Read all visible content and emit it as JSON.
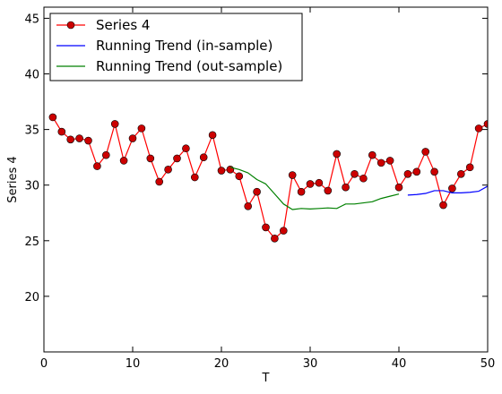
{
  "chart_data": {
    "type": "line",
    "xlabel": "T",
    "ylabel": "Series 4",
    "xlim": [
      0,
      50
    ],
    "ylim": [
      15,
      46
    ],
    "xticks": [
      0,
      10,
      20,
      30,
      40,
      50
    ],
    "yticks": [
      20,
      25,
      30,
      35,
      40,
      45
    ],
    "xtick_labels": [
      "0",
      "10",
      "20",
      "30",
      "40",
      "50"
    ],
    "ytick_labels": [
      "20",
      "25",
      "30",
      "35",
      "40",
      "45"
    ],
    "grid": false,
    "legend_position": "top-left",
    "legend": [
      "Series 4",
      "Running Trend (in-sample)",
      "Running Trend (out-sample)"
    ],
    "series": [
      {
        "name": "Series 4",
        "color": "#ff0000",
        "marker_color": "#cc0000",
        "marker": "circle",
        "x": [
          1,
          2,
          3,
          4,
          5,
          6,
          7,
          8,
          9,
          10,
          11,
          12,
          13,
          14,
          15,
          16,
          17,
          18,
          19,
          20,
          21,
          22,
          23,
          24,
          25,
          26,
          27,
          28,
          29,
          30,
          31,
          32,
          33,
          34,
          35,
          36,
          37,
          38,
          39,
          40,
          41,
          42,
          43,
          44,
          45,
          46,
          47,
          48,
          49,
          50
        ],
        "y": [
          36.1,
          34.8,
          34.1,
          34.2,
          34.0,
          31.7,
          32.7,
          35.5,
          32.2,
          34.2,
          35.1,
          32.4,
          30.3,
          31.4,
          32.4,
          33.3,
          30.7,
          32.5,
          34.5,
          31.3,
          31.4,
          30.8,
          28.1,
          29.4,
          26.2,
          25.2,
          25.9,
          30.9,
          29.4,
          30.1,
          30.2,
          29.5,
          32.8,
          29.8,
          31.0,
          30.6,
          32.7,
          32.0,
          32.2,
          29.8,
          31.0,
          31.2,
          33.0,
          31.2,
          28.2,
          29.7,
          31.0,
          31.6,
          35.1,
          35.5
        ]
      },
      {
        "name": "Running Trend (in-sample)",
        "color": "#0000ff",
        "marker": "none",
        "x": [
          41,
          42,
          43,
          44,
          45,
          46,
          47,
          48,
          49,
          50
        ],
        "y": [
          29.1,
          29.15,
          29.25,
          29.5,
          29.5,
          29.3,
          29.3,
          29.35,
          29.45,
          29.9
        ]
      },
      {
        "name": "Running Trend (out-sample)",
        "color": "#008000",
        "marker": "none",
        "x": [
          21,
          22,
          23,
          24,
          25,
          26,
          27,
          28,
          29,
          30,
          31,
          32,
          33,
          34,
          35,
          36,
          37,
          38,
          39,
          40
        ],
        "y": [
          31.6,
          31.4,
          31.1,
          30.5,
          30.1,
          29.2,
          28.3,
          27.8,
          27.9,
          27.85,
          27.9,
          27.95,
          27.9,
          28.3,
          28.3,
          28.4,
          28.5,
          28.8,
          29.0,
          29.2
        ]
      }
    ]
  }
}
